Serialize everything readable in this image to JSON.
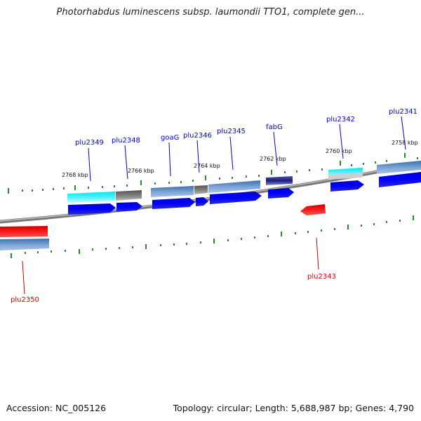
{
  "map": {
    "title": "Photorhabdus luminescens subsp. laumondii TTO1, complete gen...",
    "accession": "Accession: NC_005126",
    "summary": "Topology: circular; Length: 5,688,987 bp; Genes: 4,790"
  },
  "ticks": [
    {
      "label": "2768 kbp"
    },
    {
      "label": "2766 kbp"
    },
    {
      "label": "2764 kbp"
    },
    {
      "label": "2762 kbp"
    },
    {
      "label": "2760 kbp"
    },
    {
      "label": "2758 kbp"
    }
  ],
  "genes": [
    {
      "name": "plu2349",
      "strand": "forward",
      "color": "#0000cc"
    },
    {
      "name": "plu2348",
      "strand": "forward",
      "color": "#0000cc"
    },
    {
      "name": "goaG",
      "strand": "forward",
      "color": "#0000cc"
    },
    {
      "name": "plu2346",
      "strand": "forward",
      "color": "#0000cc"
    },
    {
      "name": "plu2345",
      "strand": "forward",
      "color": "#0000cc"
    },
    {
      "name": "fabG",
      "strand": "forward",
      "color": "#0000cc"
    },
    {
      "name": "plu2342",
      "strand": "forward",
      "color": "#0000cc"
    },
    {
      "name": "plu2341",
      "strand": "forward",
      "color": "#0000cc"
    },
    {
      "name": "plu2343",
      "strand": "reverse",
      "color": "#cc0000"
    },
    {
      "name": "plu2350",
      "strand": "reverse",
      "color": "#cc0000"
    }
  ]
}
